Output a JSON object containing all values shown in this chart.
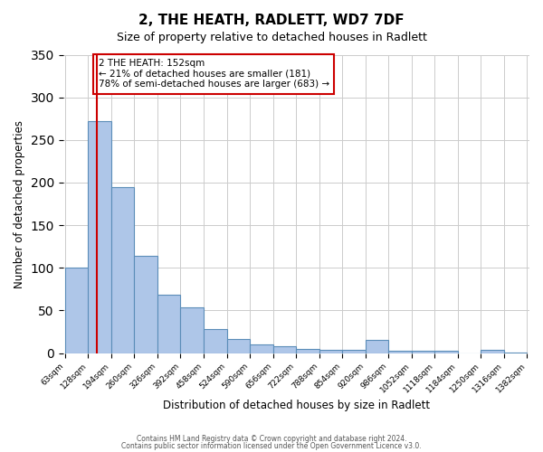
{
  "title": "2, THE HEATH, RADLETT, WD7 7DF",
  "subtitle": "Size of property relative to detached houses in Radlett",
  "xlabel": "Distribution of detached houses by size in Radlett",
  "ylabel": "Number of detached properties",
  "bar_left_edges": [
    63,
    128,
    194,
    260,
    326,
    392,
    458,
    524,
    590,
    656,
    722,
    788,
    854,
    920,
    986,
    1052,
    1118,
    1184,
    1250,
    1316
  ],
  "bar_heights": [
    100,
    272,
    195,
    114,
    68,
    54,
    28,
    17,
    10,
    8,
    5,
    4,
    4,
    15,
    3,
    3,
    3,
    0,
    4,
    1
  ],
  "bin_width": 66,
  "bar_color": "#aec6e8",
  "bar_edge_color": "#5b8db8",
  "property_line_x": 152,
  "ylim": [
    0,
    350
  ],
  "yticks": [
    0,
    50,
    100,
    150,
    200,
    250,
    300,
    350
  ],
  "xtick_labels": [
    "63sqm",
    "128sqm",
    "194sqm",
    "260sqm",
    "326sqm",
    "392sqm",
    "458sqm",
    "524sqm",
    "590sqm",
    "656sqm",
    "722sqm",
    "788sqm",
    "854sqm",
    "920sqm",
    "986sqm",
    "1052sqm",
    "1118sqm",
    "1184sqm",
    "1250sqm",
    "1316sqm",
    "1382sqm"
  ],
  "annotation_text": "2 THE HEATH: 152sqm\n← 21% of detached houses are smaller (181)\n78% of semi-detached houses are larger (683) →",
  "annotation_box_color": "#ffffff",
  "annotation_box_edge": "#cc0000",
  "property_line_color": "#cc0000",
  "footer_line1": "Contains HM Land Registry data © Crown copyright and database right 2024.",
  "footer_line2": "Contains public sector information licensed under the Open Government Licence v3.0.",
  "background_color": "#ffffff",
  "grid_color": "#cccccc"
}
